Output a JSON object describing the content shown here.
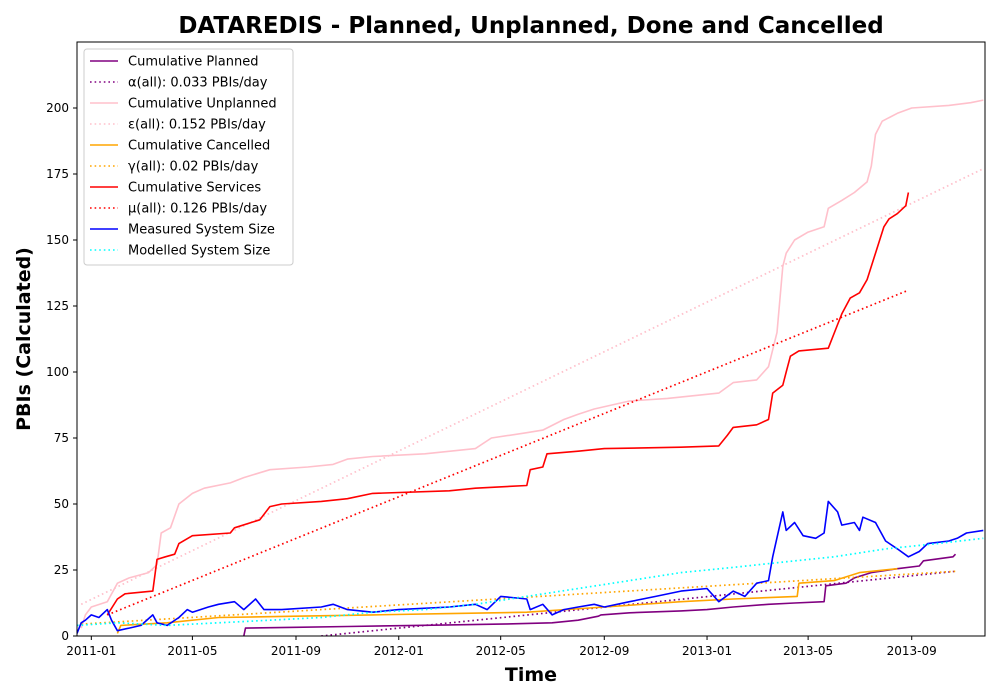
{
  "chart_data": {
    "type": "line",
    "title": "DATAREDIS - Planned, Unplanned, Done  and Cancelled",
    "xlabel": "Time",
    "ylabel": "PBIs (Calculated)",
    "xlim": [
      "2010-12-15",
      "2013-11-27"
    ],
    "ylim": [
      0,
      225
    ],
    "x_ticks": [
      "2011-01",
      "2011-05",
      "2011-09",
      "2012-01",
      "2012-05",
      "2012-09",
      "2013-01",
      "2013-05",
      "2013-09"
    ],
    "y_ticks": [
      0,
      25,
      50,
      75,
      100,
      125,
      150,
      175,
      200
    ],
    "grid": false,
    "legend_position": "top-left",
    "series": [
      {
        "name": "Cumulative Planned",
        "color": "#800080",
        "style": "solid",
        "points": [
          [
            "2011-07-01",
            0
          ],
          [
            "2011-07-03",
            3
          ],
          [
            "2011-09-01",
            3.3
          ],
          [
            "2011-11-01",
            3.6
          ],
          [
            "2012-01-01",
            3.9
          ],
          [
            "2012-03-01",
            4.2
          ],
          [
            "2012-05-01",
            4.5
          ],
          [
            "2012-07-01",
            5
          ],
          [
            "2012-08-01",
            6
          ],
          [
            "2012-08-25",
            7.5
          ],
          [
            "2012-08-28",
            8
          ],
          [
            "2012-10-01",
            8.8
          ],
          [
            "2012-12-01",
            9.5
          ],
          [
            "2013-01-01",
            10
          ],
          [
            "2013-02-01",
            11
          ],
          [
            "2013-03-15",
            12
          ],
          [
            "2013-04-15",
            12.5
          ],
          [
            "2013-05-20",
            13
          ],
          [
            "2013-05-22",
            19
          ],
          [
            "2013-06-15",
            20
          ],
          [
            "2013-06-25",
            22
          ],
          [
            "2013-07-15",
            24
          ],
          [
            "2013-08-15",
            25.5
          ],
          [
            "2013-09-10",
            26.5
          ],
          [
            "2013-09-15",
            28.5
          ],
          [
            "2013-10-20",
            30
          ],
          [
            "2013-10-23",
            31
          ]
        ]
      },
      {
        "name": "α(all): 0.033 PBIs/day",
        "color": "#800080",
        "style": "dotted",
        "points": [
          [
            "2011-10-01",
            0
          ],
          [
            "2013-10-23",
            24.5
          ]
        ]
      },
      {
        "name": "Cumulative Unplanned",
        "color": "#ffc0cb",
        "style": "solid",
        "points": [
          [
            "2010-12-20",
            3
          ],
          [
            "2010-12-25",
            8
          ],
          [
            "2011-01-01",
            11
          ],
          [
            "2011-01-20",
            13
          ],
          [
            "2011-02-01",
            20
          ],
          [
            "2011-02-15",
            22
          ],
          [
            "2011-03-10",
            24
          ],
          [
            "2011-03-20",
            27
          ],
          [
            "2011-03-25",
            39
          ],
          [
            "2011-04-05",
            41
          ],
          [
            "2011-04-15",
            50
          ],
          [
            "2011-05-01",
            54
          ],
          [
            "2011-05-15",
            56
          ],
          [
            "2011-06-15",
            58
          ],
          [
            "2011-07-01",
            60
          ],
          [
            "2011-08-01",
            63
          ],
          [
            "2011-09-15",
            64
          ],
          [
            "2011-10-15",
            65
          ],
          [
            "2011-11-01",
            67
          ],
          [
            "2011-12-01",
            68
          ],
          [
            "2012-02-01",
            69
          ],
          [
            "2012-04-01",
            71
          ],
          [
            "2012-04-20",
            75
          ],
          [
            "2012-06-01",
            77
          ],
          [
            "2012-06-20",
            78
          ],
          [
            "2012-07-15",
            82
          ],
          [
            "2012-08-01",
            84
          ],
          [
            "2012-08-20",
            86
          ],
          [
            "2012-10-01",
            89
          ],
          [
            "2012-11-15",
            90
          ],
          [
            "2013-01-15",
            92
          ],
          [
            "2013-02-01",
            96
          ],
          [
            "2013-03-01",
            97
          ],
          [
            "2013-03-15",
            102
          ],
          [
            "2013-03-25",
            115
          ],
          [
            "2013-04-01",
            140
          ],
          [
            "2013-04-05",
            145
          ],
          [
            "2013-04-15",
            150
          ],
          [
            "2013-05-01",
            153
          ],
          [
            "2013-05-20",
            155
          ],
          [
            "2013-05-25",
            162
          ],
          [
            "2013-06-10",
            165
          ],
          [
            "2013-06-25",
            168
          ],
          [
            "2013-07-10",
            172
          ],
          [
            "2013-07-15",
            178
          ],
          [
            "2013-07-20",
            190
          ],
          [
            "2013-07-28",
            195
          ],
          [
            "2013-08-15",
            198
          ],
          [
            "2013-09-01",
            200
          ],
          [
            "2013-10-15",
            201
          ],
          [
            "2013-11-10",
            202
          ],
          [
            "2013-11-25",
            203
          ]
        ]
      },
      {
        "name": "ε(all): 0.152 PBIs/day",
        "color": "#ffc0cb",
        "style": "dotted",
        "points": [
          [
            "2010-12-20",
            12
          ],
          [
            "2013-11-25",
            177
          ]
        ]
      },
      {
        "name": "Cumulative Cancelled",
        "color": "#ffa500",
        "style": "solid",
        "points": [
          [
            "2011-02-01",
            1
          ],
          [
            "2011-02-05",
            4
          ],
          [
            "2011-04-01",
            5
          ],
          [
            "2011-06-01",
            7
          ],
          [
            "2011-09-01",
            7.5
          ],
          [
            "2011-12-01",
            8
          ],
          [
            "2012-03-01",
            8.5
          ],
          [
            "2012-06-01",
            9
          ],
          [
            "2012-09-01",
            11
          ],
          [
            "2012-12-01",
            13
          ],
          [
            "2013-02-01",
            14
          ],
          [
            "2013-04-18",
            15
          ],
          [
            "2013-04-20",
            20
          ],
          [
            "2013-06-01",
            21
          ],
          [
            "2013-07-01",
            24
          ],
          [
            "2013-08-15",
            25.5
          ]
        ]
      },
      {
        "name": "γ(all): 0.02 PBIs/day",
        "color": "#ffa500",
        "style": "dotted",
        "points": [
          [
            "2010-12-20",
            4.5
          ],
          [
            "2013-10-23",
            24.5
          ]
        ]
      },
      {
        "name": "Cumulative Services",
        "color": "#ff0000",
        "style": "solid",
        "points": [
          [
            "2011-01-20",
            8
          ],
          [
            "2011-02-01",
            14
          ],
          [
            "2011-02-10",
            16
          ],
          [
            "2011-03-15",
            17
          ],
          [
            "2011-03-20",
            29
          ],
          [
            "2011-03-30",
            30
          ],
          [
            "2011-04-10",
            31
          ],
          [
            "2011-04-15",
            35
          ],
          [
            "2011-05-01",
            38
          ],
          [
            "2011-06-15",
            39
          ],
          [
            "2011-06-20",
            41
          ],
          [
            "2011-07-20",
            44
          ],
          [
            "2011-08-01",
            49
          ],
          [
            "2011-08-15",
            50
          ],
          [
            "2011-10-01",
            51
          ],
          [
            "2011-11-01",
            52
          ],
          [
            "2011-12-01",
            54
          ],
          [
            "2012-03-01",
            55
          ],
          [
            "2012-04-01",
            56
          ],
          [
            "2012-06-01",
            57
          ],
          [
            "2012-06-05",
            63
          ],
          [
            "2012-06-20",
            64
          ],
          [
            "2012-06-25",
            69
          ],
          [
            "2012-08-01",
            70
          ],
          [
            "2012-09-01",
            71
          ],
          [
            "2012-12-01",
            71.5
          ],
          [
            "2013-01-15",
            72
          ],
          [
            "2013-01-25",
            76
          ],
          [
            "2013-02-01",
            79
          ],
          [
            "2013-03-01",
            80
          ],
          [
            "2013-03-15",
            82
          ],
          [
            "2013-03-20",
            92
          ],
          [
            "2013-04-01",
            95
          ],
          [
            "2013-04-05",
            100
          ],
          [
            "2013-04-10",
            106
          ],
          [
            "2013-04-20",
            108
          ],
          [
            "2013-05-25",
            109
          ],
          [
            "2013-06-05",
            118
          ],
          [
            "2013-06-10",
            122
          ],
          [
            "2013-06-20",
            128
          ],
          [
            "2013-07-01",
            130
          ],
          [
            "2013-07-10",
            135
          ],
          [
            "2013-07-20",
            145
          ],
          [
            "2013-07-30",
            155
          ],
          [
            "2013-08-05",
            158
          ],
          [
            "2013-08-15",
            160
          ],
          [
            "2013-08-25",
            163
          ],
          [
            "2013-08-28",
            168
          ]
        ]
      },
      {
        "name": "μ(all): 0.126 PBIs/day",
        "color": "#ff0000",
        "style": "dotted",
        "points": [
          [
            "2011-01-20",
            8
          ],
          [
            "2013-08-28",
            131
          ]
        ]
      },
      {
        "name": "Measured System Size",
        "color": "#0000ff",
        "style": "solid",
        "points": [
          [
            "2010-12-15",
            1
          ],
          [
            "2010-12-20",
            5
          ],
          [
            "2010-12-25",
            6
          ],
          [
            "2011-01-01",
            8
          ],
          [
            "2011-01-10",
            7
          ],
          [
            "2011-01-20",
            10
          ],
          [
            "2011-01-25",
            6
          ],
          [
            "2011-02-01",
            2
          ],
          [
            "2011-02-15",
            3
          ],
          [
            "2011-03-01",
            4
          ],
          [
            "2011-03-15",
            8
          ],
          [
            "2011-03-20",
            5
          ],
          [
            "2011-04-01",
            4
          ],
          [
            "2011-04-15",
            7
          ],
          [
            "2011-04-25",
            10
          ],
          [
            "2011-05-01",
            9
          ],
          [
            "2011-05-20",
            11
          ],
          [
            "2011-06-01",
            12
          ],
          [
            "2011-06-20",
            13
          ],
          [
            "2011-07-01",
            10
          ],
          [
            "2011-07-15",
            14
          ],
          [
            "2011-07-25",
            10
          ],
          [
            "2011-08-15",
            10
          ],
          [
            "2011-10-01",
            11
          ],
          [
            "2011-10-15",
            12
          ],
          [
            "2011-11-01",
            10
          ],
          [
            "2011-12-01",
            9
          ],
          [
            "2012-01-01",
            10
          ],
          [
            "2012-03-01",
            11
          ],
          [
            "2012-04-01",
            12
          ],
          [
            "2012-04-15",
            10
          ],
          [
            "2012-05-01",
            15
          ],
          [
            "2012-06-01",
            14
          ],
          [
            "2012-06-05",
            10
          ],
          [
            "2012-06-20",
            12
          ],
          [
            "2012-07-01",
            8
          ],
          [
            "2012-07-15",
            10
          ],
          [
            "2012-08-01",
            11
          ],
          [
            "2012-08-20",
            12
          ],
          [
            "2012-09-01",
            11
          ],
          [
            "2012-10-01",
            13
          ],
          [
            "2012-11-01",
            15
          ],
          [
            "2012-12-01",
            17
          ],
          [
            "2013-01-01",
            18
          ],
          [
            "2013-01-15",
            13
          ],
          [
            "2013-02-01",
            17
          ],
          [
            "2013-02-15",
            15
          ],
          [
            "2013-03-01",
            20
          ],
          [
            "2013-03-15",
            21
          ],
          [
            "2013-03-20",
            30
          ],
          [
            "2013-04-01",
            47
          ],
          [
            "2013-04-05",
            40
          ],
          [
            "2013-04-15",
            43
          ],
          [
            "2013-04-25",
            38
          ],
          [
            "2013-05-10",
            37
          ],
          [
            "2013-05-20",
            39
          ],
          [
            "2013-05-25",
            51
          ],
          [
            "2013-06-05",
            47
          ],
          [
            "2013-06-10",
            42
          ],
          [
            "2013-06-25",
            43
          ],
          [
            "2013-07-01",
            40
          ],
          [
            "2013-07-05",
            45
          ],
          [
            "2013-07-20",
            43
          ],
          [
            "2013-08-01",
            36
          ],
          [
            "2013-08-15",
            33
          ],
          [
            "2013-08-28",
            30
          ],
          [
            "2013-09-10",
            32
          ],
          [
            "2013-09-20",
            35
          ],
          [
            "2013-10-15",
            36
          ],
          [
            "2013-10-25",
            37
          ],
          [
            "2013-11-05",
            39
          ],
          [
            "2013-11-25",
            40
          ]
        ]
      },
      {
        "name": "Modelled System Size",
        "color": "#00ffff",
        "style": "dotted",
        "points": [
          [
            "2010-12-15",
            4
          ],
          [
            "2011-02-01",
            5
          ],
          [
            "2011-04-01",
            4
          ],
          [
            "2011-06-01",
            5
          ],
          [
            "2011-08-01",
            6
          ],
          [
            "2011-10-01",
            7
          ],
          [
            "2011-12-01",
            9
          ],
          [
            "2012-02-01",
            10
          ],
          [
            "2012-04-01",
            12
          ],
          [
            "2012-06-01",
            15
          ],
          [
            "2012-08-01",
            18
          ],
          [
            "2012-10-01",
            21
          ],
          [
            "2012-12-01",
            24
          ],
          [
            "2013-02-01",
            26
          ],
          [
            "2013-04-01",
            28
          ],
          [
            "2013-06-01",
            30
          ],
          [
            "2013-08-01",
            33
          ],
          [
            "2013-10-01",
            35
          ],
          [
            "2013-11-25",
            37
          ]
        ]
      }
    ]
  }
}
